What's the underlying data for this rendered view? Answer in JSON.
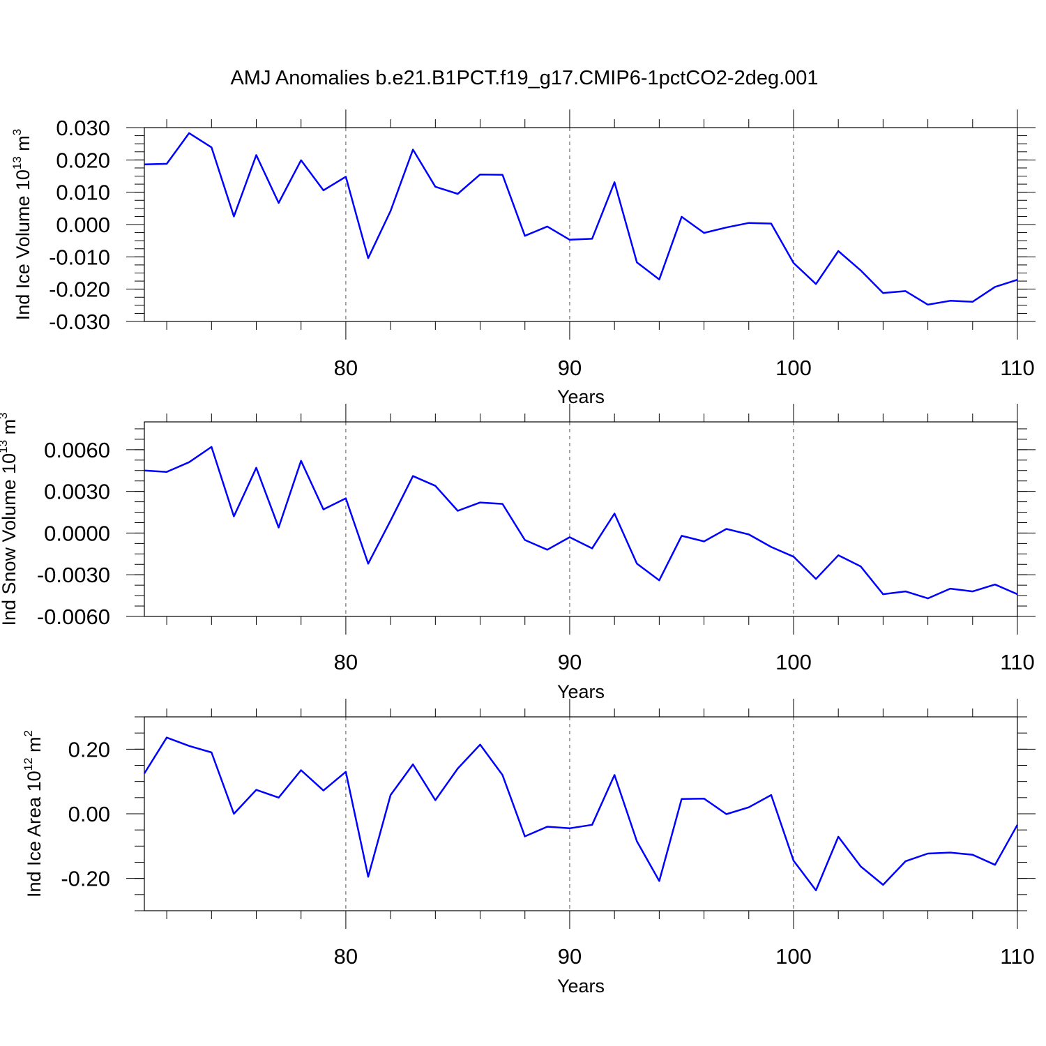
{
  "figure": {
    "title": "AMJ Anomalies b.e21.B1PCT.f19_g17.CMIP6-1pctCO2-2deg.001"
  },
  "colors": {
    "series": "#0000ff",
    "axes": "#000000",
    "grid": "#555555"
  },
  "chart_data": [
    {
      "type": "line",
      "ylabel": {
        "main": "Ind Ice Volume 10",
        "exp": "13",
        "unit": " m",
        "unit_exp": "3"
      },
      "xlabel": "Years",
      "xlim": [
        71,
        110
      ],
      "ylim": [
        -0.03,
        0.03
      ],
      "xticks": [
        80,
        90,
        100,
        110
      ],
      "yticks": [
        -0.03,
        -0.02,
        -0.01,
        0.0,
        0.01,
        0.02,
        0.03
      ],
      "ytick_labels": [
        "-0.030",
        "-0.020",
        "-0.010",
        "0.000",
        "0.010",
        "0.020",
        "0.030"
      ],
      "grid_x": [
        80,
        90,
        100
      ],
      "series": [
        {
          "x": [
            71,
            72,
            73,
            74,
            75,
            76,
            77,
            78,
            79,
            80,
            81,
            82,
            83,
            84,
            85,
            86,
            87,
            88,
            89,
            90,
            91,
            92,
            93,
            94,
            95,
            96,
            97,
            98,
            99,
            100,
            101,
            102,
            103,
            104,
            105,
            106,
            107,
            108,
            109,
            110
          ],
          "values": [
            0.0186,
            0.0188,
            0.0283,
            0.0239,
            0.0025,
            0.0215,
            0.0067,
            0.0199,
            0.0106,
            0.0148,
            -0.0104,
            0.0042,
            0.0232,
            0.0117,
            0.0095,
            0.0155,
            0.0154,
            -0.0035,
            -0.0006,
            -0.0047,
            -0.0044,
            0.0131,
            -0.0117,
            -0.017,
            0.0024,
            -0.0026,
            -0.0009,
            0.0005,
            0.0003,
            -0.0119,
            -0.0184,
            -0.0082,
            -0.0142,
            -0.0212,
            -0.0206,
            -0.0248,
            -0.0236,
            -0.0239,
            -0.0193,
            -0.0171
          ]
        }
      ]
    },
    {
      "type": "line",
      "ylabel": {
        "main": "Ind Snow Volume 10",
        "exp": "13",
        "unit": " m",
        "unit_exp": "3"
      },
      "xlabel": "Years",
      "xlim": [
        71,
        110
      ],
      "ylim": [
        -0.006,
        0.008
      ],
      "xticks": [
        80,
        90,
        100,
        110
      ],
      "yticks": [
        -0.006,
        -0.003,
        0.0,
        0.003,
        0.006
      ],
      "ytick_labels": [
        "-0.0060",
        "-0.0030",
        "0.0000",
        "0.0030",
        "0.0060"
      ],
      "grid_x": [
        80,
        90,
        100
      ],
      "series": [
        {
          "x": [
            71,
            72,
            73,
            74,
            75,
            76,
            77,
            78,
            79,
            80,
            81,
            82,
            83,
            84,
            85,
            86,
            87,
            88,
            89,
            90,
            91,
            92,
            93,
            94,
            95,
            96,
            97,
            98,
            99,
            100,
            101,
            102,
            103,
            104,
            105,
            106,
            107,
            108,
            109,
            110
          ],
          "values": [
            0.0045,
            0.0044,
            0.0051,
            0.0062,
            0.0012,
            0.0047,
            0.0004,
            0.0052,
            0.0017,
            0.0025,
            -0.0022,
            0.0009,
            0.0041,
            0.0034,
            0.0016,
            0.0022,
            0.0021,
            -0.0005,
            -0.0012,
            -0.0003,
            -0.0011,
            0.0014,
            -0.0022,
            -0.0034,
            -0.0002,
            -0.0006,
            0.0003,
            -0.0001,
            -0.001,
            -0.0017,
            -0.0033,
            -0.0016,
            -0.0024,
            -0.0044,
            -0.0042,
            -0.0047,
            -0.004,
            -0.0042,
            -0.0037,
            -0.0044
          ]
        }
      ]
    },
    {
      "type": "line",
      "ylabel": {
        "main": "Ind Ice Area 10",
        "exp": "12",
        "unit": " m",
        "unit_exp": "2"
      },
      "xlabel": "Years",
      "xlim": [
        71,
        110
      ],
      "ylim": [
        -0.3,
        0.3
      ],
      "xticks": [
        80,
        90,
        100,
        110
      ],
      "yticks": [
        -0.2,
        0.0,
        0.2
      ],
      "ytick_labels": [
        "-0.20",
        "0.00",
        "0.20"
      ],
      "grid_x": [
        80,
        90,
        100
      ],
      "series": [
        {
          "x": [
            71,
            72,
            73,
            74,
            75,
            76,
            77,
            78,
            79,
            80,
            81,
            82,
            83,
            84,
            85,
            86,
            87,
            88,
            89,
            90,
            91,
            92,
            93,
            94,
            95,
            96,
            97,
            98,
            99,
            100,
            101,
            102,
            103,
            104,
            105,
            106,
            107,
            108,
            109,
            110
          ],
          "values": [
            0.125,
            0.236,
            0.21,
            0.19,
            0.0,
            0.074,
            0.05,
            0.135,
            0.072,
            0.13,
            -0.195,
            0.058,
            0.153,
            0.042,
            0.14,
            0.214,
            0.12,
            -0.07,
            -0.04,
            -0.045,
            -0.034,
            0.12,
            -0.085,
            -0.208,
            0.046,
            0.047,
            -0.001,
            0.02,
            0.058,
            -0.145,
            -0.237,
            -0.071,
            -0.163,
            -0.22,
            -0.147,
            -0.123,
            -0.12,
            -0.127,
            -0.158,
            -0.034
          ]
        }
      ]
    }
  ]
}
